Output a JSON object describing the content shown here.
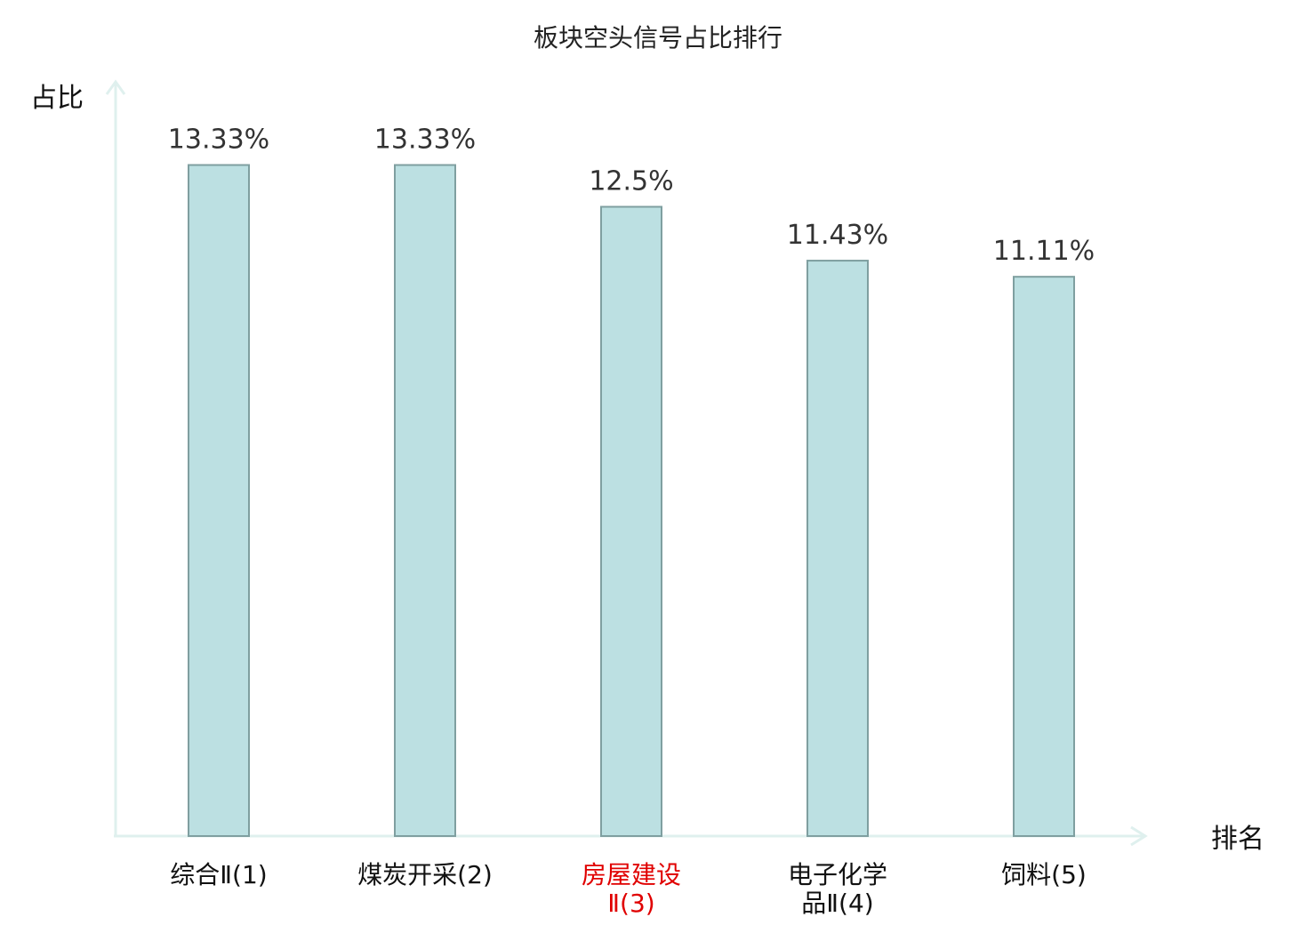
{
  "chart_data": {
    "type": "bar",
    "title": "板块空头信号占比排行",
    "xlabel": "排名",
    "ylabel": "占比",
    "categories": [
      {
        "line1": "综合Ⅱ(1)",
        "line2": ""
      },
      {
        "line1": "煤炭开采(2)",
        "line2": ""
      },
      {
        "line1": "房屋建设",
        "line2": "Ⅱ(3)"
      },
      {
        "line1": "电子化学",
        "line2": "品Ⅱ(4)"
      },
      {
        "line1": "饲料(5)",
        "line2": ""
      }
    ],
    "values": [
      13.33,
      13.33,
      12.5,
      11.43,
      11.11
    ],
    "value_labels": [
      "13.33%",
      "13.33%",
      "12.5%",
      "11.43%",
      "11.11%"
    ],
    "highlight_index": 2,
    "colors": {
      "bar_fill": "#bce0e2",
      "bar_stroke": "#7f9fa0",
      "axis": "#dff0ee",
      "highlight_text": "#e00000"
    },
    "grid": false
  }
}
